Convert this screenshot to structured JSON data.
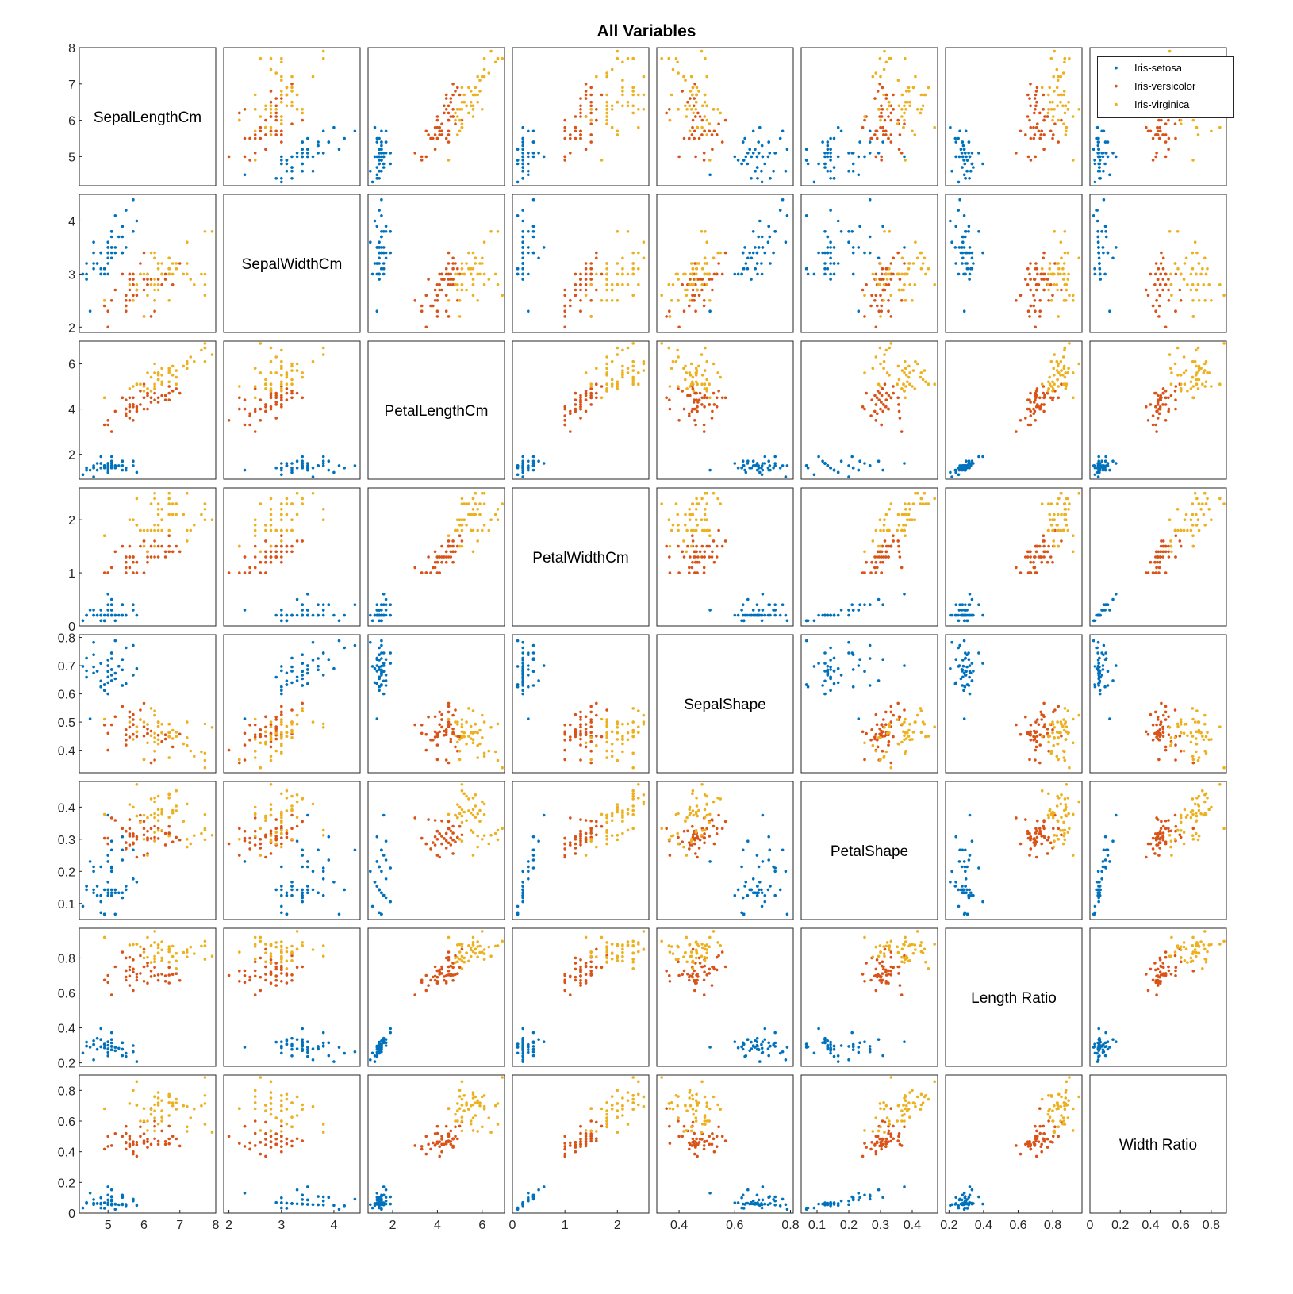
{
  "title": "All Variables",
  "legend": {
    "placement": "top-right (inside first row)",
    "entries": [
      {
        "label": "Iris-setosa",
        "color": "#0072BD"
      },
      {
        "label": "Iris-versicolor",
        "color": "#D95319"
      },
      {
        "label": "Iris-virginica",
        "color": "#EDB120"
      }
    ]
  },
  "chart_data": {
    "type": "scatter",
    "subtype": "scatter-matrix",
    "title": "All Variables",
    "grid": false,
    "variables": [
      {
        "name": "SepalLengthCm",
        "lim": [
          4.2,
          8.0
        ],
        "ticks": [
          5,
          6,
          7,
          8
        ],
        "ticklabels": [
          "5",
          "6",
          "7",
          "8"
        ]
      },
      {
        "name": "SepalWidthCm",
        "lim": [
          1.9,
          4.5
        ],
        "ticks": [
          2,
          3,
          4
        ],
        "ticklabels": [
          "2",
          "3",
          "4"
        ]
      },
      {
        "name": "PetalLengthCm",
        "lim": [
          0.9,
          7.0
        ],
        "ticks": [
          2,
          4,
          6
        ],
        "ticklabels": [
          "2",
          "4",
          "6"
        ]
      },
      {
        "name": "PetalWidthCm",
        "lim": [
          0.0,
          2.6
        ],
        "ticks": [
          0,
          1,
          2
        ],
        "ticklabels": [
          "0",
          "1",
          "2"
        ]
      },
      {
        "name": "SepalShape",
        "lim": [
          0.32,
          0.81
        ],
        "ticks": [
          0.4,
          0.5,
          0.6,
          0.7,
          0.8
        ],
        "ticklabels": [
          "0.4",
          "0.5",
          "0.6",
          "0.7",
          "0.8"
        ],
        "xticks": [
          0.4,
          0.6,
          0.8
        ],
        "xticklabels": [
          "0.4",
          "0.6",
          "0.8"
        ]
      },
      {
        "name": "PetalShape",
        "lim": [
          0.05,
          0.48
        ],
        "ticks": [
          0.1,
          0.2,
          0.3,
          0.4
        ],
        "ticklabels": [
          "0.1",
          "0.2",
          "0.3",
          "0.4"
        ]
      },
      {
        "name": "Length Ratio",
        "lim": [
          0.18,
          0.97
        ],
        "ticks": [
          0.2,
          0.4,
          0.6,
          0.8
        ],
        "ticklabels": [
          "0.2",
          "0.4",
          "0.6",
          "0.8"
        ]
      },
      {
        "name": "Width Ratio",
        "lim": [
          0.0,
          0.9
        ],
        "ticks": [
          0,
          0.2,
          0.4,
          0.6,
          0.8
        ],
        "ticklabels": [
          "0",
          "0.2",
          "0.4",
          "0.6",
          "0.8"
        ]
      }
    ],
    "groups": [
      {
        "name": "Iris-setosa",
        "color": "#0072BD",
        "points": [
          [
            5.1,
            3.5,
            1.4,
            0.2
          ],
          [
            4.9,
            3.0,
            1.4,
            0.2
          ],
          [
            4.7,
            3.2,
            1.3,
            0.2
          ],
          [
            4.6,
            3.1,
            1.5,
            0.2
          ],
          [
            5.0,
            3.6,
            1.4,
            0.2
          ],
          [
            5.4,
            3.9,
            1.7,
            0.4
          ],
          [
            4.6,
            3.4,
            1.4,
            0.3
          ],
          [
            5.0,
            3.4,
            1.5,
            0.2
          ],
          [
            4.4,
            2.9,
            1.4,
            0.2
          ],
          [
            4.9,
            3.1,
            1.5,
            0.1
          ],
          [
            5.4,
            3.7,
            1.5,
            0.2
          ],
          [
            4.8,
            3.4,
            1.6,
            0.2
          ],
          [
            4.8,
            3.0,
            1.4,
            0.1
          ],
          [
            4.3,
            3.0,
            1.1,
            0.1
          ],
          [
            5.8,
            4.0,
            1.2,
            0.2
          ],
          [
            5.7,
            4.4,
            1.5,
            0.4
          ],
          [
            5.4,
            3.9,
            1.3,
            0.4
          ],
          [
            5.1,
            3.5,
            1.4,
            0.3
          ],
          [
            5.7,
            3.8,
            1.7,
            0.3
          ],
          [
            5.1,
            3.8,
            1.5,
            0.3
          ],
          [
            5.4,
            3.4,
            1.7,
            0.2
          ],
          [
            5.1,
            3.7,
            1.5,
            0.4
          ],
          [
            4.6,
            3.6,
            1.0,
            0.2
          ],
          [
            5.1,
            3.3,
            1.7,
            0.5
          ],
          [
            4.8,
            3.4,
            1.9,
            0.2
          ],
          [
            5.0,
            3.0,
            1.6,
            0.2
          ],
          [
            5.0,
            3.4,
            1.6,
            0.4
          ],
          [
            5.2,
            3.5,
            1.5,
            0.2
          ],
          [
            5.2,
            3.4,
            1.4,
            0.2
          ],
          [
            4.7,
            3.2,
            1.6,
            0.2
          ],
          [
            4.8,
            3.1,
            1.6,
            0.2
          ],
          [
            5.4,
            3.4,
            1.5,
            0.4
          ],
          [
            5.2,
            4.1,
            1.5,
            0.1
          ],
          [
            5.5,
            4.2,
            1.4,
            0.2
          ],
          [
            4.9,
            3.1,
            1.5,
            0.1
          ],
          [
            5.0,
            3.2,
            1.2,
            0.2
          ],
          [
            5.5,
            3.5,
            1.3,
            0.2
          ],
          [
            4.9,
            3.1,
            1.5,
            0.1
          ],
          [
            4.4,
            3.0,
            1.3,
            0.2
          ],
          [
            5.1,
            3.4,
            1.5,
            0.2
          ],
          [
            5.0,
            3.5,
            1.3,
            0.3
          ],
          [
            4.5,
            2.3,
            1.3,
            0.3
          ],
          [
            4.4,
            3.2,
            1.3,
            0.2
          ],
          [
            5.0,
            3.5,
            1.6,
            0.6
          ],
          [
            5.1,
            3.8,
            1.9,
            0.4
          ],
          [
            4.8,
            3.0,
            1.4,
            0.3
          ],
          [
            5.1,
            3.8,
            1.6,
            0.2
          ],
          [
            4.6,
            3.2,
            1.4,
            0.2
          ],
          [
            5.3,
            3.7,
            1.5,
            0.2
          ],
          [
            5.0,
            3.3,
            1.4,
            0.2
          ]
        ]
      },
      {
        "name": "Iris-versicolor",
        "color": "#D95319",
        "points": [
          [
            7.0,
            3.2,
            4.7,
            1.4
          ],
          [
            6.4,
            3.2,
            4.5,
            1.5
          ],
          [
            6.9,
            3.1,
            4.9,
            1.5
          ],
          [
            5.5,
            2.3,
            4.0,
            1.3
          ],
          [
            6.5,
            2.8,
            4.6,
            1.5
          ],
          [
            5.7,
            2.8,
            4.5,
            1.3
          ],
          [
            6.3,
            3.3,
            4.7,
            1.6
          ],
          [
            4.9,
            2.4,
            3.3,
            1.0
          ],
          [
            6.6,
            2.9,
            4.6,
            1.3
          ],
          [
            5.2,
            2.7,
            3.9,
            1.4
          ],
          [
            5.0,
            2.0,
            3.5,
            1.0
          ],
          [
            5.9,
            3.0,
            4.2,
            1.5
          ],
          [
            6.0,
            2.2,
            4.0,
            1.0
          ],
          [
            6.1,
            2.9,
            4.7,
            1.4
          ],
          [
            5.6,
            2.9,
            3.6,
            1.3
          ],
          [
            6.7,
            3.1,
            4.4,
            1.4
          ],
          [
            5.6,
            3.0,
            4.5,
            1.5
          ],
          [
            5.8,
            2.7,
            4.1,
            1.0
          ],
          [
            6.2,
            2.2,
            4.5,
            1.5
          ],
          [
            5.6,
            2.5,
            3.9,
            1.1
          ],
          [
            5.9,
            3.2,
            4.8,
            1.8
          ],
          [
            6.1,
            2.8,
            4.0,
            1.3
          ],
          [
            6.3,
            2.5,
            4.9,
            1.5
          ],
          [
            6.1,
            2.8,
            4.7,
            1.2
          ],
          [
            6.4,
            2.9,
            4.3,
            1.3
          ],
          [
            6.6,
            3.0,
            4.4,
            1.4
          ],
          [
            6.8,
            2.8,
            4.8,
            1.4
          ],
          [
            6.7,
            3.0,
            5.0,
            1.7
          ],
          [
            6.0,
            2.9,
            4.5,
            1.5
          ],
          [
            5.7,
            2.6,
            3.5,
            1.0
          ],
          [
            5.5,
            2.4,
            3.8,
            1.1
          ],
          [
            5.5,
            2.4,
            3.7,
            1.0
          ],
          [
            5.8,
            2.7,
            3.9,
            1.2
          ],
          [
            6.0,
            2.7,
            5.1,
            1.6
          ],
          [
            5.4,
            3.0,
            4.5,
            1.5
          ],
          [
            6.0,
            3.4,
            4.5,
            1.6
          ],
          [
            6.7,
            3.1,
            4.7,
            1.5
          ],
          [
            6.3,
            2.3,
            4.4,
            1.3
          ],
          [
            5.6,
            3.0,
            4.1,
            1.3
          ],
          [
            5.5,
            2.5,
            4.0,
            1.3
          ],
          [
            5.5,
            2.6,
            4.4,
            1.2
          ],
          [
            6.1,
            3.0,
            4.6,
            1.4
          ],
          [
            5.8,
            2.6,
            4.0,
            1.2
          ],
          [
            5.0,
            2.3,
            3.3,
            1.0
          ],
          [
            5.6,
            2.7,
            4.2,
            1.3
          ],
          [
            5.7,
            3.0,
            4.2,
            1.2
          ],
          [
            5.7,
            2.9,
            4.2,
            1.3
          ],
          [
            6.2,
            2.9,
            4.3,
            1.3
          ],
          [
            5.1,
            2.5,
            3.0,
            1.1
          ],
          [
            5.7,
            2.8,
            4.1,
            1.3
          ]
        ]
      },
      {
        "name": "Iris-virginica",
        "color": "#EDB120",
        "points": [
          [
            6.3,
            3.3,
            6.0,
            2.5
          ],
          [
            5.8,
            2.7,
            5.1,
            1.9
          ],
          [
            7.1,
            3.0,
            5.9,
            2.1
          ],
          [
            6.3,
            2.9,
            5.6,
            1.8
          ],
          [
            6.5,
            3.0,
            5.8,
            2.2
          ],
          [
            7.6,
            3.0,
            6.6,
            2.1
          ],
          [
            4.9,
            2.5,
            4.5,
            1.7
          ],
          [
            7.3,
            2.9,
            6.3,
            1.8
          ],
          [
            6.7,
            2.5,
            5.8,
            1.8
          ],
          [
            7.2,
            3.6,
            6.1,
            2.5
          ],
          [
            6.5,
            3.2,
            5.1,
            2.0
          ],
          [
            6.4,
            2.7,
            5.3,
            1.9
          ],
          [
            6.8,
            3.0,
            5.5,
            2.1
          ],
          [
            5.7,
            2.5,
            5.0,
            2.0
          ],
          [
            5.8,
            2.8,
            5.1,
            2.4
          ],
          [
            6.4,
            3.2,
            5.3,
            2.3
          ],
          [
            6.5,
            3.0,
            5.5,
            1.8
          ],
          [
            7.7,
            3.8,
            6.7,
            2.2
          ],
          [
            7.7,
            2.6,
            6.9,
            2.3
          ],
          [
            6.0,
            2.2,
            5.0,
            1.5
          ],
          [
            6.9,
            3.2,
            5.7,
            2.3
          ],
          [
            5.6,
            2.8,
            4.9,
            2.0
          ],
          [
            7.7,
            2.8,
            6.7,
            2.0
          ],
          [
            6.3,
            2.7,
            4.9,
            1.8
          ],
          [
            6.7,
            3.3,
            5.7,
            2.1
          ],
          [
            7.2,
            3.2,
            6.0,
            1.8
          ],
          [
            6.2,
            2.8,
            4.8,
            1.8
          ],
          [
            6.1,
            3.0,
            4.9,
            1.8
          ],
          [
            6.4,
            2.8,
            5.6,
            2.1
          ],
          [
            7.2,
            3.0,
            5.8,
            1.6
          ],
          [
            7.4,
            2.8,
            6.1,
            1.9
          ],
          [
            7.9,
            3.8,
            6.4,
            2.0
          ],
          [
            6.4,
            2.8,
            5.6,
            2.2
          ],
          [
            6.3,
            2.8,
            5.1,
            1.5
          ],
          [
            6.1,
            2.6,
            5.6,
            1.4
          ],
          [
            7.7,
            3.0,
            6.1,
            2.3
          ],
          [
            6.3,
            3.4,
            5.6,
            2.4
          ],
          [
            6.4,
            3.1,
            5.5,
            1.8
          ],
          [
            6.0,
            3.0,
            4.8,
            1.8
          ],
          [
            6.9,
            3.1,
            5.4,
            2.1
          ],
          [
            6.7,
            3.1,
            5.6,
            2.4
          ],
          [
            6.9,
            3.1,
            5.1,
            2.3
          ],
          [
            5.8,
            2.7,
            5.1,
            1.9
          ],
          [
            6.8,
            3.2,
            5.9,
            2.3
          ],
          [
            6.7,
            3.3,
            5.7,
            2.5
          ],
          [
            6.7,
            3.0,
            5.2,
            2.3
          ],
          [
            6.3,
            2.5,
            5.0,
            1.9
          ],
          [
            6.5,
            3.0,
            5.2,
            2.0
          ],
          [
            6.2,
            3.4,
            5.4,
            2.3
          ],
          [
            5.9,
            3.0,
            5.1,
            1.8
          ]
        ]
      }
    ]
  }
}
